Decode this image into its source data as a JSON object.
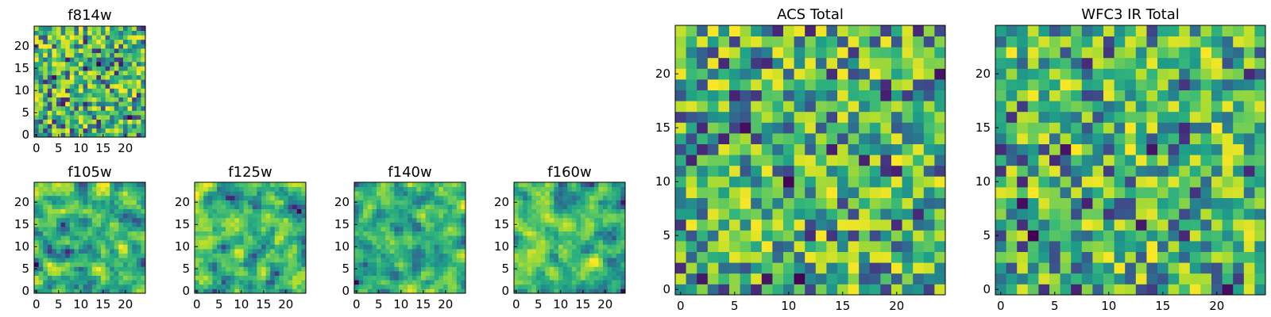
{
  "chart_data": [
    {
      "type": "heatmap",
      "title": "f814w",
      "xticks": [
        "0",
        "5",
        "10",
        "15",
        "20"
      ],
      "yticks": [
        "0",
        "5",
        "10",
        "15",
        "20"
      ],
      "xlim": [
        -0.5,
        24.5
      ],
      "ylim": [
        -0.5,
        24.5
      ],
      "grid": [
        25,
        25
      ],
      "colormap": "viridis",
      "seed": 11,
      "smooth": 0,
      "values": "25x25 pixel array; fine-grained noise, mostly green/yellow with scattered dark-purple pixels"
    },
    {
      "type": "heatmap",
      "title": "f105w",
      "xticks": [
        "0",
        "5",
        "10",
        "15",
        "20"
      ],
      "yticks": [
        "0",
        "5",
        "10",
        "15",
        "20"
      ],
      "xlim": [
        -0.5,
        24.5
      ],
      "ylim": [
        -0.5,
        24.5
      ],
      "grid": [
        25,
        25
      ],
      "colormap": "viridis",
      "seed": 23,
      "smooth": 1,
      "values": "25x25 pixel array; smoothed noise, bright band near centre, dark clumps lower right"
    },
    {
      "type": "heatmap",
      "title": "f125w",
      "xticks": [
        "0",
        "5",
        "10",
        "15",
        "20"
      ],
      "yticks": [
        "0",
        "5",
        "10",
        "15",
        "20"
      ],
      "xlim": [
        -0.5,
        24.5
      ],
      "ylim": [
        -0.5,
        24.5
      ],
      "grid": [
        25,
        25
      ],
      "colormap": "viridis",
      "seed": 37,
      "smooth": 1,
      "values": "25x25 pixel array; smoothed noise"
    },
    {
      "type": "heatmap",
      "title": "f140w",
      "xticks": [
        "0",
        "5",
        "10",
        "15",
        "20"
      ],
      "yticks": [
        "0",
        "5",
        "10",
        "15",
        "20"
      ],
      "xlim": [
        -0.5,
        24.5
      ],
      "ylim": [
        -0.5,
        24.5
      ],
      "grid": [
        25,
        25
      ],
      "colormap": "viridis",
      "seed": 41,
      "smooth": 1,
      "values": "25x25 pixel array; smoothed noise"
    },
    {
      "type": "heatmap",
      "title": "f160w",
      "xticks": [
        "0",
        "5",
        "10",
        "15",
        "20"
      ],
      "yticks": [
        "0",
        "5",
        "10",
        "15",
        "20"
      ],
      "xlim": [
        -0.5,
        24.5
      ],
      "ylim": [
        -0.5,
        24.5
      ],
      "grid": [
        25,
        25
      ],
      "colormap": "viridis",
      "seed": 53,
      "smooth": 1,
      "values": "25x25 pixel array; smoothed noise"
    },
    {
      "type": "heatmap",
      "title": "ACS Total",
      "xticks": [
        "0",
        "5",
        "10",
        "15",
        "20"
      ],
      "yticks": [
        "0",
        "5",
        "10",
        "15",
        "20"
      ],
      "xlim": [
        -0.5,
        24.5
      ],
      "ylim": [
        -0.5,
        24.5
      ],
      "grid": [
        25,
        25
      ],
      "colormap": "viridis",
      "seed": 67,
      "smooth": 0,
      "values": "25x25 pixel array; noise, mostly green/yellow with isolated dark pixels"
    },
    {
      "type": "heatmap",
      "title": "WFC3 IR Total",
      "xticks": [
        "0",
        "5",
        "10",
        "15",
        "20"
      ],
      "yticks": [
        "0",
        "5",
        "10",
        "15",
        "20"
      ],
      "xlim": [
        -0.5,
        24.5
      ],
      "ylim": [
        -0.5,
        24.5
      ],
      "grid": [
        25,
        25
      ],
      "colormap": "viridis",
      "seed": 79,
      "smooth": 0,
      "values": "25x25 pixel array; noise, mostly green/yellow with isolated dark pixels"
    }
  ]
}
